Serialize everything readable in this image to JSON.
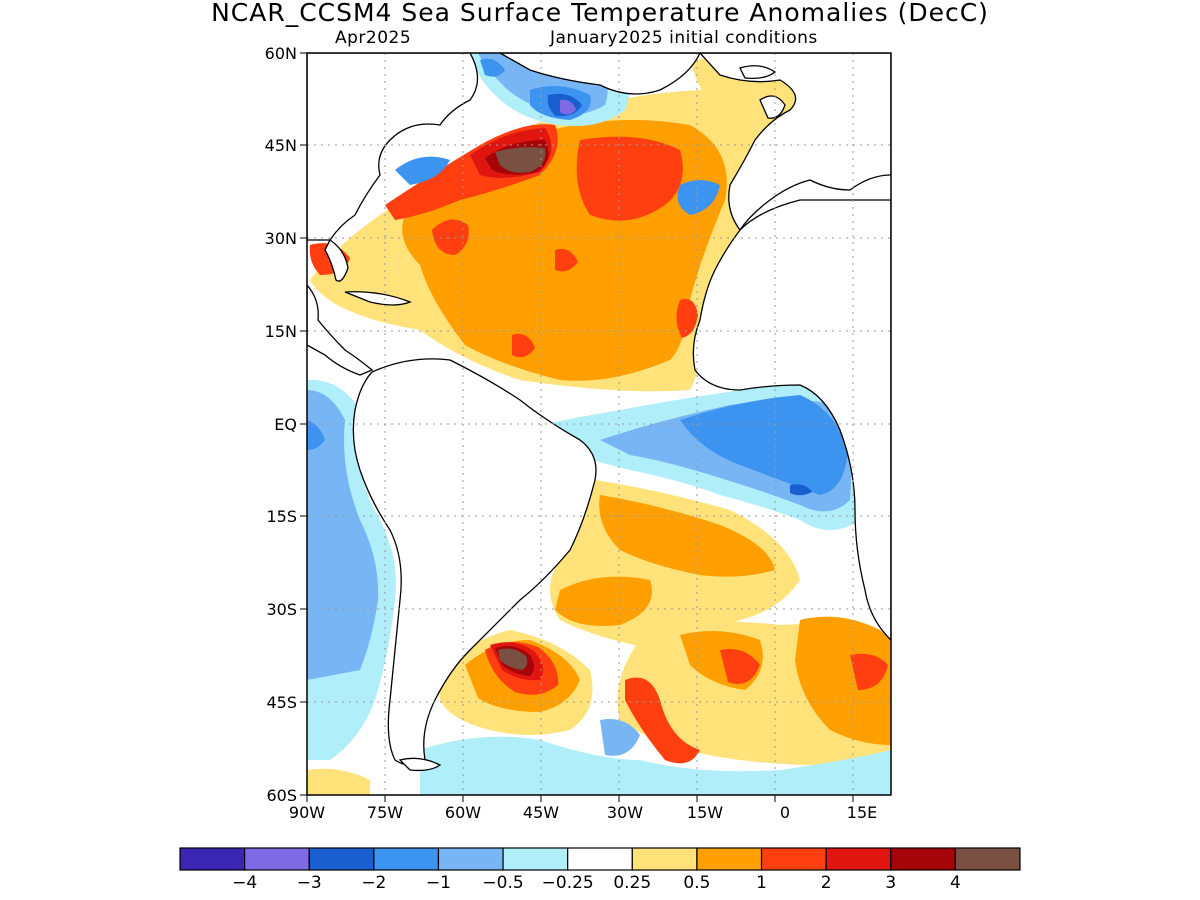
{
  "title": "NCAR_CCSM4 Sea Surface Temperature Anomalies (DecC)",
  "subtitle_left": "Apr2025",
  "subtitle_right": "January2025 initial conditions",
  "lat_labels": [
    "60N",
    "45N",
    "30N",
    "15N",
    "EQ",
    "15S",
    "30S",
    "45S",
    "60S"
  ],
  "lon_labels": [
    "90W",
    "75W",
    "60W",
    "45W",
    "30W",
    "15W",
    "0",
    "15E"
  ],
  "colorbar": {
    "colors": [
      "#3b25b3",
      "#7f6ae6",
      "#1a5fd0",
      "#3d93f0",
      "#78b5f5",
      "#b0eefa",
      "#ffffff",
      "#ffe27a",
      "#ffa000",
      "#ff3f10",
      "#e01510",
      "#a50408",
      "#7a5042"
    ],
    "labels": [
      "−4",
      "−3",
      "−2",
      "−1",
      "−0.5",
      "−0.25",
      "0.25",
      "0.5",
      "1",
      "2",
      "3",
      "4"
    ]
  },
  "colors": {
    "land": "#ffffff",
    "coast": "#000000",
    "grid": "#9a9a9a"
  }
}
